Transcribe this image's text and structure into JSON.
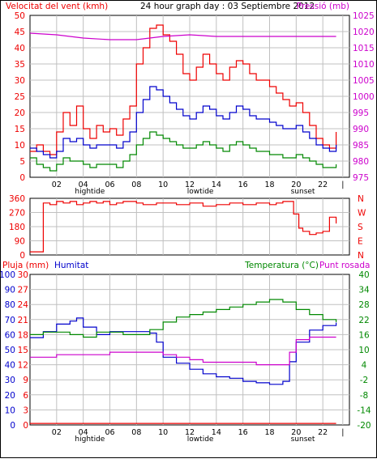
{
  "colors": {
    "wind": "#ee0000",
    "pressure": "#cc00cc",
    "speed_blue": "#0000cc",
    "speed_green": "#008800",
    "temperature": "#008800",
    "humidity": "#0000cc",
    "dewpoint": "#cc00cc",
    "rain": "#ee0000",
    "grid": "#c0c0c0"
  },
  "chart_data": [
    {
      "type": "line",
      "title": "24 hour graph day : 03 Septiembre 2012",
      "ylabel_left": "Velocitat del vent (kmh)",
      "ylabel_right": "Pressió (mb)",
      "ylim_left": [
        0,
        50
      ],
      "ylim_right": [
        975,
        1025
      ],
      "yticks_left": [
        0,
        5,
        10,
        15,
        20,
        25,
        30,
        35,
        40,
        45,
        50
      ],
      "yticks_right": [
        975,
        980,
        985,
        990,
        995,
        1000,
        1005,
        1010,
        1015,
        1020,
        1025
      ],
      "xticks": [
        "02",
        "04",
        "06",
        "08",
        "10",
        "12",
        "14",
        "16",
        "18",
        "20",
        "22",
        "|"
      ],
      "annotations": [
        "hightide",
        "lowtide",
        "sunset"
      ],
      "series": [
        {
          "color_key": "wind",
          "axis": "left",
          "x": [
            0,
            0.5,
            1,
            1.5,
            2,
            2.5,
            3,
            3.5,
            4,
            4.5,
            5,
            5.5,
            6,
            6.5,
            7,
            7.5,
            8,
            8.5,
            9,
            9.5,
            10,
            10.5,
            11,
            11.5,
            12,
            12.5,
            13,
            13.5,
            14,
            14.5,
            15,
            15.5,
            16,
            16.5,
            17,
            17.5,
            18,
            18.5,
            19,
            19.5,
            20,
            20.5,
            21,
            21.5,
            22,
            22.5,
            23
          ],
          "values": [
            8,
            10,
            8,
            7,
            14,
            20,
            16,
            22,
            15,
            12,
            16,
            14,
            15,
            13,
            18,
            22,
            35,
            40,
            46,
            47,
            44,
            42,
            38,
            32,
            30,
            34,
            38,
            35,
            32,
            30,
            34,
            36,
            35,
            32,
            30,
            30,
            28,
            26,
            24,
            22,
            23,
            20,
            16,
            12,
            10,
            9,
            14
          ]
        },
        {
          "color_key": "speed_blue",
          "axis": "left",
          "x": [
            0,
            0.5,
            1,
            1.5,
            2,
            2.5,
            3,
            3.5,
            4,
            4.5,
            5,
            5.5,
            6,
            6.5,
            7,
            7.5,
            8,
            8.5,
            9,
            9.5,
            10,
            10.5,
            11,
            11.5,
            12,
            12.5,
            13,
            13.5,
            14,
            14.5,
            15,
            15.5,
            16,
            16.5,
            17,
            17.5,
            18,
            18.5,
            19,
            19.5,
            20,
            20.5,
            21,
            21.5,
            22,
            22.5,
            23
          ],
          "values": [
            9,
            8,
            7,
            6,
            8,
            12,
            11,
            12,
            10,
            9,
            10,
            10,
            10,
            9,
            11,
            14,
            20,
            24,
            28,
            27,
            25,
            23,
            21,
            19,
            18,
            20,
            22,
            21,
            19,
            18,
            20,
            22,
            21,
            19,
            18,
            18,
            17,
            16,
            15,
            15,
            16,
            14,
            12,
            10,
            9,
            8,
            10
          ]
        },
        {
          "color_key": "speed_green",
          "axis": "left",
          "x": [
            0,
            0.5,
            1,
            1.5,
            2,
            2.5,
            3,
            3.5,
            4,
            4.5,
            5,
            5.5,
            6,
            6.5,
            7,
            7.5,
            8,
            8.5,
            9,
            9.5,
            10,
            10.5,
            11,
            11.5,
            12,
            12.5,
            13,
            13.5,
            14,
            14.5,
            15,
            15.5,
            16,
            16.5,
            17,
            17.5,
            18,
            18.5,
            19,
            19.5,
            20,
            20.5,
            21,
            21.5,
            22,
            22.5,
            23
          ],
          "values": [
            6,
            4,
            3,
            2,
            4,
            6,
            5,
            5,
            4,
            3,
            4,
            4,
            4,
            3,
            5,
            7,
            10,
            12,
            14,
            13,
            12,
            11,
            10,
            9,
            9,
            10,
            11,
            10,
            9,
            8,
            10,
            11,
            10,
            9,
            8,
            8,
            7,
            7,
            6,
            6,
            7,
            6,
            5,
            4,
            3,
            3,
            4
          ]
        },
        {
          "color_key": "pressure",
          "axis": "right",
          "x": [
            0,
            2,
            4,
            6,
            8,
            10,
            12,
            14,
            16,
            18,
            20,
            22,
            23
          ],
          "values": [
            1019.5,
            1019,
            1018,
            1017.5,
            1017.5,
            1018.5,
            1019,
            1018.5,
            1018.5,
            1018.5,
            1018.5,
            1018.5,
            1018.5
          ]
        }
      ]
    },
    {
      "type": "line",
      "ylabel_right_letters": [
        "N",
        "W",
        "S",
        "E",
        "N"
      ],
      "ylim": [
        0,
        360
      ],
      "yticks": [
        0,
        90,
        180,
        270,
        360
      ],
      "series": [
        {
          "color_key": "wind",
          "x": [
            0,
            0.2,
            0.6,
            1,
            1.5,
            2,
            2.5,
            3,
            3.5,
            4,
            4.5,
            5,
            5.5,
            6,
            6.5,
            7,
            7.5,
            8,
            8.5,
            9,
            9.5,
            10,
            11,
            12,
            13,
            14,
            15,
            16,
            17,
            18,
            18.5,
            19,
            19.5,
            19.8,
            20.2,
            20.5,
            21,
            21.5,
            22,
            22.5,
            23
          ],
          "values": [
            20,
            20,
            20,
            330,
            320,
            340,
            330,
            340,
            320,
            330,
            340,
            330,
            340,
            320,
            330,
            340,
            340,
            330,
            320,
            320,
            330,
            330,
            320,
            330,
            310,
            320,
            330,
            320,
            330,
            320,
            330,
            340,
            340,
            260,
            170,
            150,
            130,
            140,
            150,
            240,
            200
          ]
        }
      ]
    },
    {
      "type": "line",
      "ylabel_left": "Pluja (mm)",
      "ylabel_left2": "Humitat",
      "ylabel_right": "Temperatura (°C)",
      "ylabel_right2": "Punt rosada",
      "ylim_left": [
        0,
        30
      ],
      "ylim_left2": [
        0,
        100
      ],
      "ylim_right": [
        -20,
        40
      ],
      "yticks_left": [
        0,
        3,
        6,
        9,
        12,
        15,
        18,
        21,
        24,
        27,
        30
      ],
      "yticks_left2": [
        0,
        10,
        20,
        30,
        40,
        50,
        60,
        70,
        80,
        90,
        100
      ],
      "yticks_right": [
        -20,
        -14,
        -8,
        -2,
        4,
        10,
        16,
        22,
        28,
        34,
        40
      ],
      "xticks": [
        "02",
        "04",
        "06",
        "08",
        "10",
        "12",
        "14",
        "16",
        "18",
        "20",
        "22",
        "|"
      ],
      "annotations": [
        "hightide",
        "lowtide",
        "sunset"
      ],
      "series": [
        {
          "color_key": "humidity",
          "axis": "left2",
          "x": [
            0,
            1,
            2,
            3,
            3.5,
            4,
            5,
            6,
            7,
            8,
            9,
            9.5,
            10,
            11,
            12,
            13,
            14,
            15,
            16,
            17,
            18,
            19,
            19.5,
            20,
            21,
            22,
            23
          ],
          "values": [
            58,
            62,
            67,
            69,
            71,
            65,
            60,
            62,
            62,
            62,
            61,
            55,
            45,
            41,
            37,
            34,
            32,
            31,
            29,
            28,
            27,
            29,
            42,
            55,
            63,
            66,
            68
          ]
        },
        {
          "color_key": "temperature",
          "axis": "right",
          "x": [
            0,
            1,
            2,
            3,
            4,
            5,
            6,
            7,
            8,
            9,
            10,
            11,
            12,
            13,
            14,
            15,
            16,
            17,
            18,
            19,
            20,
            21,
            22,
            23
          ],
          "values": [
            16,
            17,
            17,
            16,
            15,
            17,
            17,
            16,
            16,
            18,
            21,
            23,
            24,
            25,
            26,
            27,
            28,
            29,
            30,
            29,
            26,
            24,
            22,
            21
          ]
        },
        {
          "color_key": "dewpoint",
          "axis": "right",
          "x": [
            0,
            1,
            2,
            3,
            4,
            5,
            6,
            7,
            8,
            9,
            10,
            11,
            12,
            13,
            14,
            15,
            16,
            17,
            18,
            19,
            19.5,
            20,
            21,
            22,
            23
          ],
          "values": [
            7,
            7,
            8,
            8,
            8,
            8,
            9,
            9,
            9,
            9,
            8,
            7,
            6,
            5,
            5,
            5,
            5,
            4,
            4,
            4,
            9,
            14,
            15,
            15,
            15
          ]
        },
        {
          "color_key": "rain",
          "axis": "left",
          "x": [
            0,
            23
          ],
          "values": [
            0.3,
            0.3
          ]
        }
      ]
    }
  ]
}
